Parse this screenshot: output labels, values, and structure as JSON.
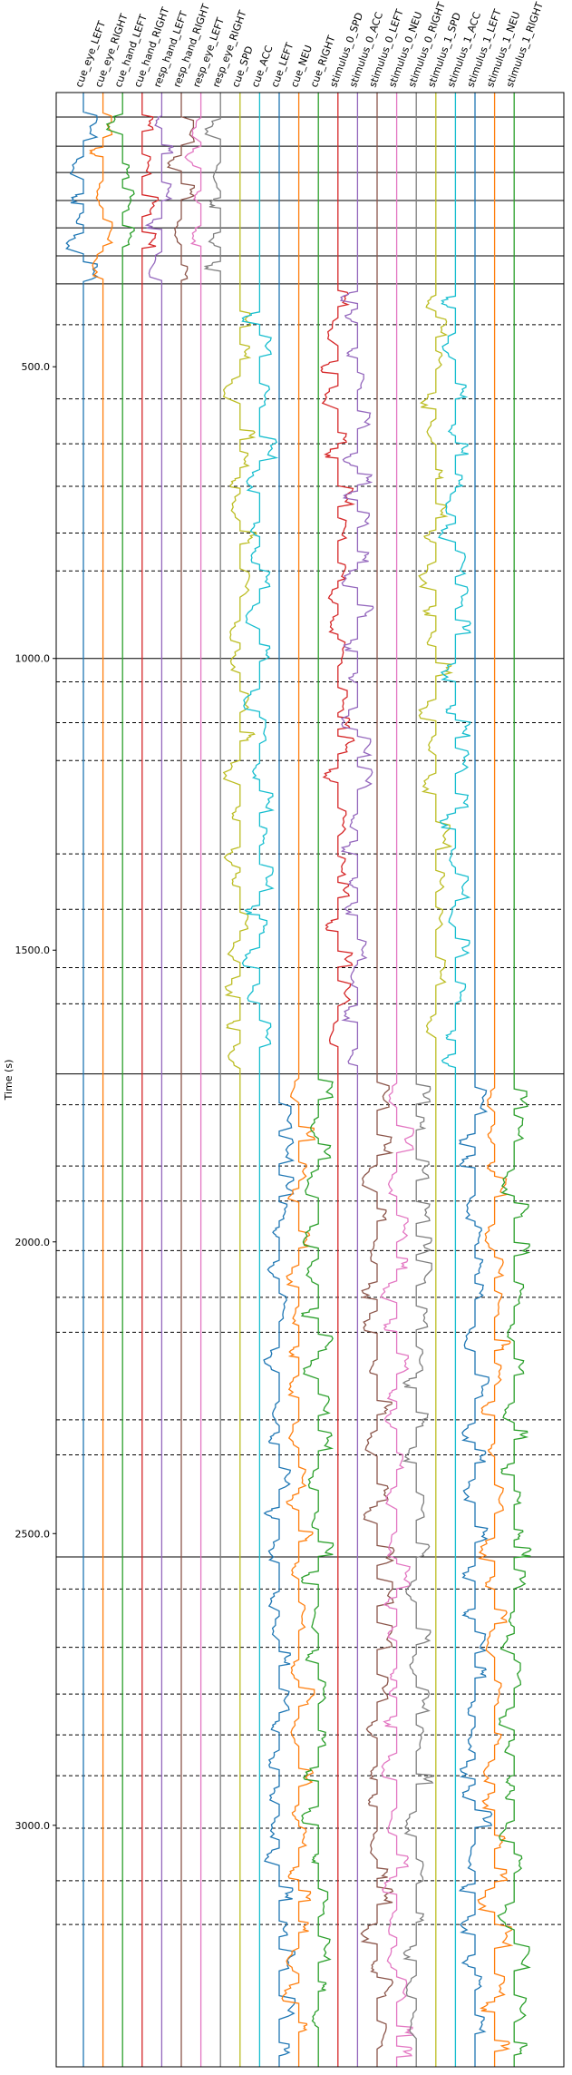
{
  "chart_data": {
    "type": "line",
    "title": "",
    "xlabel": "",
    "ylabel": "Time (s)",
    "ylim": [
      3414,
      30
    ],
    "yticks": [
      500.0,
      1000.0,
      1500.0,
      2000.0,
      2500.0,
      3000.0
    ],
    "ytick_labels": [
      "500.0",
      "1000.0",
      "1500.0",
      "2000.0",
      "2500.0",
      "3000.0"
    ],
    "grid": false,
    "legend": "none",
    "channels": [
      {
        "name": "cue_eye_LEFT",
        "color": "#1f77b4"
      },
      {
        "name": "cue_eye_RIGHT",
        "color": "#ff7f0e"
      },
      {
        "name": "cue_hand_LEFT",
        "color": "#2ca02c"
      },
      {
        "name": "cue_hand_RIGHT",
        "color": "#d62728"
      },
      {
        "name": "resp_hand_LEFT",
        "color": "#9467bd"
      },
      {
        "name": "resp_hand_RIGHT",
        "color": "#8c564b"
      },
      {
        "name": "resp_eye_LEFT",
        "color": "#e377c2"
      },
      {
        "name": "resp_eye_RIGHT",
        "color": "#7f7f7f"
      },
      {
        "name": "cue_SPD",
        "color": "#bcbd22"
      },
      {
        "name": "cue_ACC",
        "color": "#17becf"
      },
      {
        "name": "cue_LEFT",
        "color": "#1f77b4"
      },
      {
        "name": "cue_NEU",
        "color": "#ff7f0e"
      },
      {
        "name": "cue_RIGHT",
        "color": "#2ca02c"
      },
      {
        "name": "stimulus_0_SPD",
        "color": "#d62728"
      },
      {
        "name": "stimulus_0_ACC",
        "color": "#9467bd"
      },
      {
        "name": "stimulus_0_LEFT",
        "color": "#8c564b"
      },
      {
        "name": "stimulus_0_NEU",
        "color": "#e377c2"
      },
      {
        "name": "stimulus_0_RIGHT",
        "color": "#7f7f7f"
      },
      {
        "name": "stimulus_1_SPD",
        "color": "#bcbd22"
      },
      {
        "name": "stimulus_1_ACC",
        "color": "#17becf"
      },
      {
        "name": "stimulus_1_LEFT",
        "color": "#1f77b4"
      },
      {
        "name": "stimulus_1_NEU",
        "color": "#ff7f0e"
      },
      {
        "name": "stimulus_1_RIGHT",
        "color": "#2ca02c"
      }
    ],
    "segment_boundaries_solid": [
      72,
      122,
      167,
      215,
      262,
      310,
      358,
      1000,
      1712,
      2540
    ],
    "segment_boundaries_dashed": [
      428,
      555,
      632,
      705,
      785,
      850,
      1040,
      1110,
      1175,
      1335,
      1430,
      1530,
      1592,
      1765,
      1870,
      1930,
      2015,
      2095,
      2155,
      2305,
      2365,
      2595,
      2695,
      2775,
      2845,
      2915,
      3005,
      3095,
      3170
    ],
    "events": [
      {
        "segment": [
          30,
          358
        ],
        "channels": [
          "cue_eye_LEFT",
          "cue_eye_RIGHT",
          "cue_hand_LEFT",
          "cue_hand_RIGHT",
          "resp_hand_LEFT",
          "resp_hand_RIGHT",
          "resp_eye_LEFT",
          "resp_eye_RIGHT"
        ]
      },
      {
        "segment": [
          358,
          1712
        ],
        "channels": [
          "cue_SPD",
          "cue_ACC",
          "stimulus_0_SPD",
          "stimulus_0_ACC",
          "stimulus_1_SPD",
          "stimulus_1_ACC"
        ]
      },
      {
        "segment": [
          1712,
          3414
        ],
        "channels": [
          "cue_LEFT",
          "cue_NEU",
          "cue_RIGHT",
          "stimulus_0_LEFT",
          "stimulus_0_NEU",
          "stimulus_0_RIGHT",
          "stimulus_1_LEFT",
          "stimulus_1_NEU",
          "stimulus_1_RIGHT"
        ]
      }
    ]
  }
}
